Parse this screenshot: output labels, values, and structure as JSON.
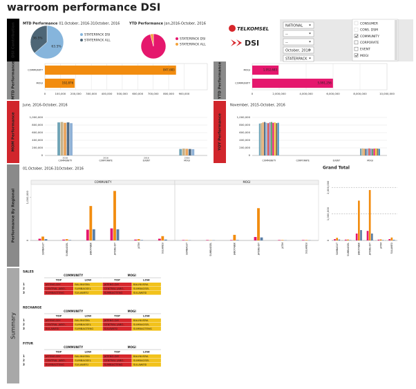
{
  "title": "warroom performance DSI",
  "sidebar": [
    "DSI Contribution",
    "MTD Performance",
    "MOM Performance",
    "Performance By Regional",
    "Summary",
    "YTD Performance",
    "YOY Performance"
  ],
  "logos": [
    "TELKOMSEL",
    "DSI"
  ],
  "filters": {
    "dropdowns": [
      "NATIONAL",
      "--",
      "--",
      "October, 2016",
      "STATERPACK"
    ],
    "checkboxes": [
      {
        "label": "CONSUMER",
        "checked": false,
        "enabled": false
      },
      {
        "label": "CONS. DSM",
        "checked": false,
        "enabled": false
      },
      {
        "label": "COMMUNITY",
        "checked": true,
        "enabled": true
      },
      {
        "label": "CORPORATE",
        "checked": false,
        "enabled": true
      },
      {
        "label": "EVENT",
        "checked": false,
        "enabled": true
      },
      {
        "label": "MOGI",
        "checked": true,
        "enabled": true
      }
    ]
  },
  "chart_data": [
    {
      "type": "pie",
      "title": "MTD Performance",
      "subtitle": "01.October, 2016-31October, 2016",
      "categories": [
        "STATERPACK DSI",
        "STATERPACK ALL"
      ],
      "values": [
        63.5,
        36.5
      ],
      "value_labels": [
        "63.5%",
        "36.5%"
      ],
      "colors": [
        "#86b5dc",
        "#4e6676"
      ]
    },
    {
      "type": "pie",
      "title": "YTD Performance",
      "subtitle": "Jan,2016-October, 2016",
      "categories": [
        "STATERPACK DSI",
        "STATERPACK ALL"
      ],
      "values": [
        96,
        4
      ],
      "colors": [
        "#e5176d",
        "#f4a23a"
      ]
    },
    {
      "type": "bar",
      "orientation": "horizontal",
      "categories": [
        "COMMUNITY",
        "MOGI"
      ],
      "values": [
        847683,
        192876
      ],
      "value_labels": [
        "847,683",
        "192,876"
      ],
      "color": "#f28c0f",
      "xlim": [
        0,
        1050000
      ],
      "xticks": [
        0,
        {
          "value": 100000,
          "label": "100,000"
        },
        {
          "value": 200000,
          "label": "200,000"
        },
        {
          "value": 300000,
          "label": "300,000"
        },
        {
          "value": 400000,
          "label": "400,000"
        },
        {
          "value": 500000,
          "label": "500,000"
        },
        {
          "value": 600000,
          "label": "600,000"
        },
        {
          "value": 700000,
          "label": "700,000"
        },
        {
          "value": 800000,
          "label": "800,000"
        },
        {
          "value": 900000,
          "label": "900,000"
        }
      ],
      "grid": true
    },
    {
      "type": "bar",
      "orientation": "horizontal",
      "categories": [
        "MOGI",
        "COMMUNITY"
      ],
      "values": [
        1952683,
        5991256
      ],
      "value_labels": [
        "1,952,683",
        "5,991,256"
      ],
      "color": "#e5176d",
      "xlim": [
        0,
        10000000
      ],
      "xticks": [
        0,
        {
          "value": 2000000,
          "label": "2,000,000"
        },
        {
          "value": 4000000,
          "label": "4,000,000"
        },
        {
          "value": 6000000,
          "label": "6,000,000"
        },
        {
          "value": 8000000,
          "label": "8,000,000"
        },
        {
          "value": 10000000,
          "label": "10,000,000"
        }
      ],
      "grid": true
    },
    {
      "type": "bar",
      "orientation": "vertical",
      "subtitle": "June, 2016-October, 2016",
      "bar_label": "2016",
      "categories": [
        "COMMUNITY",
        "CORPORATE",
        "EVENT",
        "MOGI"
      ],
      "series": [
        {
          "color": "#6fa3b5",
          "values": [
            870000,
            0,
            0,
            170000
          ]
        },
        {
          "color": "#c6b188",
          "values": [
            880000,
            0,
            0,
            180000
          ]
        },
        {
          "color": "#e9a55e",
          "values": [
            860000,
            0,
            0,
            175000
          ]
        },
        {
          "color": "#4f6b86",
          "values": [
            870000,
            0,
            0,
            170000
          ]
        },
        {
          "color": "#8fb1d6",
          "values": [
            850000,
            0,
            0,
            165000
          ]
        }
      ],
      "ylim": [
        0,
        1000000
      ],
      "yticks": [
        0,
        {
          "value": 200000,
          "label": "200,000"
        },
        {
          "value": 400000,
          "label": "400,000"
        },
        {
          "value": 600000,
          "label": "600,000"
        },
        {
          "value": 800000,
          "label": "800,000"
        },
        {
          "value": 1000000,
          "label": "1,000,000"
        }
      ],
      "grid": true
    },
    {
      "type": "bar",
      "orientation": "vertical",
      "subtitle": "November, 2015-October, 2016",
      "categories": [
        "COMMUNITY",
        "CORPORATE",
        "EVENT",
        "MOGI"
      ],
      "series": [
        {
          "color": "#6fa3b5",
          "values": [
            840000,
            0,
            0,
            180000
          ]
        },
        {
          "color": "#c6b188",
          "values": [
            850000,
            0,
            0,
            185000
          ]
        },
        {
          "color": "#e9a55e",
          "values": [
            870000,
            0,
            0,
            180000
          ]
        },
        {
          "color": "#4f6b86",
          "values": [
            880000,
            0,
            0,
            175000
          ]
        },
        {
          "color": "#8fb1d6",
          "values": [
            860000,
            0,
            0,
            180000
          ]
        },
        {
          "color": "#d9534f",
          "values": [
            850000,
            0,
            0,
            185000
          ]
        },
        {
          "color": "#9b7bb8",
          "values": [
            870000,
            0,
            0,
            180000
          ]
        },
        {
          "color": "#5aa469",
          "values": [
            880000,
            0,
            0,
            175000
          ]
        },
        {
          "color": "#e5176d",
          "values": [
            860000,
            0,
            0,
            180000
          ]
        },
        {
          "color": "#f4c430",
          "values": [
            870000,
            0,
            0,
            185000
          ]
        },
        {
          "color": "#8c6d4f",
          "values": [
            850000,
            0,
            0,
            180000
          ]
        },
        {
          "color": "#3b8ec2",
          "values": [
            860000,
            0,
            0,
            175000
          ]
        }
      ],
      "ylim": [
        0,
        1000000
      ],
      "yticks": [
        0,
        {
          "value": 200000,
          "label": "200,000"
        },
        {
          "value": 400000,
          "label": "400,000"
        },
        {
          "value": 600000,
          "label": "600,000"
        },
        {
          "value": 800000,
          "label": "800,000"
        },
        {
          "value": 1000000,
          "label": "1,000,000"
        }
      ],
      "grid": true
    },
    {
      "type": "faceted_bar",
      "subtitle": "01.October, 2016-31October, 2016",
      "panels": [
        {
          "name": "COMMUNITY",
          "categories": [
            "SUMBAGUT",
            "SUMBAGSEL",
            "JABOTABEK",
            "JATENG-DIY",
            "JATIM",
            "SULAWESI"
          ],
          "series": [
            {
              "color": "#e5176d",
              "values": [
                40000,
                20000,
                250000,
                280000,
                20000,
                40000
              ]
            },
            {
              "color": "#f28c0f",
              "values": [
                90000,
                30000,
                800000,
                1150000,
                30000,
                100000
              ]
            },
            {
              "color": "#5b7fa6",
              "values": [
                30000,
                10000,
                260000,
                260000,
                10000,
                20000
              ]
            }
          ]
        },
        {
          "name": "MOGI",
          "categories": [
            "SUMBAGUT",
            "SUMBAGSEL",
            "JABOTABEK",
            "JATENG-DIY",
            "JATIM",
            "SULAWESI"
          ],
          "series": [
            {
              "color": "#e5176d",
              "values": [
                10000,
                10000,
                10000,
                80000,
                10000,
                10000
              ]
            },
            {
              "color": "#f28c0f",
              "values": [
                10000,
                5000,
                130000,
                750000,
                10000,
                10000
              ]
            },
            {
              "color": "#5b7fa6",
              "values": [
                5000,
                5000,
                10000,
                70000,
                5000,
                5000
              ]
            }
          ]
        }
      ],
      "ylim": [
        0,
        1300000
      ],
      "yticks": [
        0,
        {
          "value": 1000000,
          "label": "1,000,000"
        }
      ],
      "grid": false
    },
    {
      "type": "bar",
      "orientation": "vertical",
      "title": "Grand Total",
      "categories": [
        "SUMBAGUT",
        "SUMBAGSEL",
        "JABOTABEK",
        "JATENG-DIY",
        "JATIM",
        "SULAWESI"
      ],
      "series": [
        {
          "color": "#e5176d",
          "values": [
            50000,
            30000,
            260000,
            360000,
            30000,
            50000
          ]
        },
        {
          "color": "#f28c0f",
          "values": [
            100000,
            35000,
            1500000,
            1900000,
            40000,
            110000
          ]
        },
        {
          "color": "#5b7fa6",
          "values": [
            35000,
            15000,
            390000,
            260000,
            15000,
            25000
          ]
        }
      ],
      "ylim": [
        0,
        2500000
      ],
      "yticks": [
        0,
        {
          "value": 1000000,
          "label": "1,000,000"
        },
        {
          "value": 2000000,
          "label": "2,000,000"
        }
      ],
      "grid": true
    }
  ],
  "summary": {
    "top_color": "#d7262b",
    "low_color": "#f2c21b",
    "tables": [
      {
        "title": "SALES",
        "groups": [
          "COMMUNITY",
          "MOGI"
        ],
        "columns": [
          "TOP",
          "LOW",
          "TOP",
          "LOW"
        ],
        "rows": [
          {
            "rank": 1,
            "cells": [
              "JATENG-DIY",
              "BALINUSRA",
              "JATENG-DIY",
              "BALINUSRA"
            ]
          },
          {
            "rank": 2,
            "cells": [
              "CENTRAL JABO..",
              "SUMBAGSEL",
              "CENTRAL JABO..",
              "SUMBAGSEL"
            ]
          },
          {
            "rank": 3,
            "cells": [
              "SUMBAGTENG",
              "SULAWESI",
              "SUMBAGTENG",
              "SULAWESI"
            ]
          }
        ]
      },
      {
        "title": "RECHARGE",
        "groups": [
          "COMMUNITY",
          "MOGI"
        ],
        "columns": [
          "TOP",
          "LOW",
          "TOP",
          "LOW"
        ],
        "rows": [
          {
            "rank": 1,
            "cells": [
              "JATENG-DIY",
              "BALINUSRA",
              "JATENG-DIY",
              "BALINUSRA"
            ]
          },
          {
            "rank": 2,
            "cells": [
              "CENTRAL JABO..",
              "SUMBAGSEL",
              "CENTRAL JABO..",
              "SUMBAGSEL"
            ]
          },
          {
            "rank": 3,
            "cells": [
              "SULAWESI",
              "SUMBAGTENG",
              "SULAWESI",
              "SUMBAGTENG"
            ]
          }
        ]
      },
      {
        "title": "FITUR",
        "groups": [
          "COMMUNITY",
          "MOGI"
        ],
        "columns": [
          "TOP",
          "LOW",
          "TOP",
          "LOW"
        ],
        "rows": [
          {
            "rank": 1,
            "cells": [
              "JATENG-DIY",
              "BALINUSRA",
              "JATENG-DIY",
              "BALINUSRA"
            ]
          },
          {
            "rank": 2,
            "cells": [
              "CENTRAL JABO..",
              "SUMBAGSEL",
              "CENTRAL JABO..",
              "SUMBAGSEL"
            ]
          },
          {
            "rank": 3,
            "cells": [
              "SUMBAGTENG",
              "SULAWESI",
              "SUMBAGTENG",
              "SULAWESI"
            ]
          }
        ]
      }
    ]
  }
}
